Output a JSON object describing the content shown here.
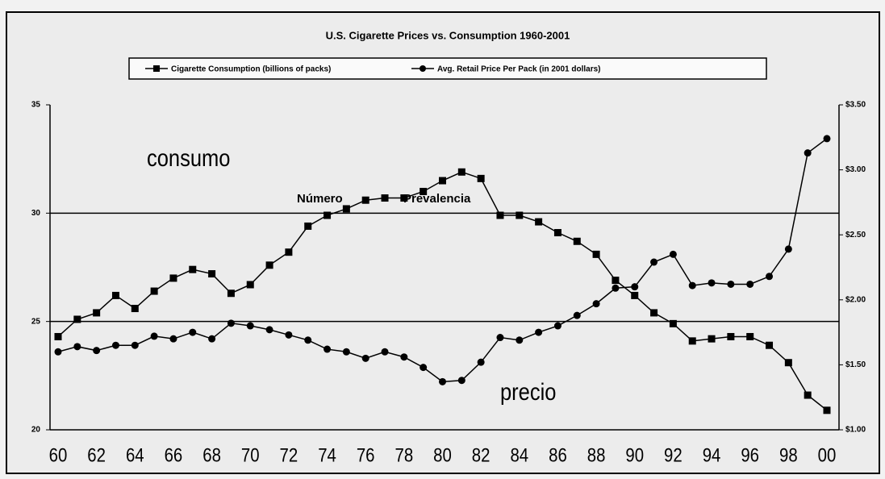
{
  "chart_data": {
    "type": "line",
    "title": "U.S. Cigarette Prices vs. Consumption 1960-2001",
    "categories": [
      "60",
      null,
      "62",
      null,
      "64",
      null,
      "66",
      null,
      "68",
      null,
      "70",
      null,
      "72",
      null,
      "74",
      null,
      "76",
      null,
      "78",
      null,
      "80",
      null,
      "82",
      null,
      "84",
      null,
      "86",
      null,
      "88",
      null,
      "90",
      null,
      "92",
      null,
      "94",
      null,
      "96",
      null,
      "98",
      null,
      "00"
    ],
    "series": [
      {
        "name": "Cigarette Consumption (billions of packs)",
        "color": "#000000",
        "marker": "square",
        "values": [
          24.3,
          25.1,
          25.4,
          26.2,
          25.6,
          26.4,
          27.0,
          27.4,
          27.2,
          26.3,
          26.7,
          27.6,
          28.2,
          29.4,
          29.9,
          30.2,
          30.6,
          30.7,
          30.7,
          31.0,
          31.5,
          31.9,
          31.6,
          29.9,
          29.9,
          29.6,
          29.1,
          28.7,
          28.1,
          26.9,
          26.2,
          25.4,
          24.9,
          24.1,
          24.2,
          24.3,
          24.3,
          23.9,
          23.1,
          21.6,
          20.9
        ]
      },
      {
        "name": "Avg. Retail Price Per Pack (in 2001 dollars)",
        "color": "#000000",
        "marker": "circle",
        "axis": "y2",
        "values": [
          1.6,
          1.64,
          1.61,
          1.65,
          1.65,
          1.72,
          1.7,
          1.75,
          1.7,
          1.82,
          1.8,
          1.77,
          1.73,
          1.69,
          1.62,
          1.6,
          1.55,
          1.6,
          1.56,
          1.48,
          1.37,
          1.38,
          1.52,
          1.71,
          1.69,
          1.75,
          1.8,
          1.88,
          1.97,
          2.09,
          2.1,
          2.29,
          2.35,
          2.11,
          2.13,
          2.12,
          2.12,
          2.18,
          2.39,
          3.13,
          3.24
        ]
      }
    ],
    "ylim": [
      20,
      35
    ],
    "yticks": [
      20,
      25,
      30,
      35
    ],
    "y2lim": [
      1,
      3.5
    ],
    "y2ticks": [
      {
        "value": 1,
        "label": "$1.00"
      },
      {
        "value": 1.5,
        "label": "$1.50"
      },
      {
        "value": 2,
        "label": "$2.00"
      },
      {
        "value": 2.5,
        "label": "$2.50"
      },
      {
        "value": 3,
        "label": "$3.00"
      },
      {
        "value": 3.5,
        "label": "$3.50"
      }
    ],
    "grid": true,
    "annotations": [
      "consumo",
      "precio",
      "Número",
      "Prevalencia"
    ]
  }
}
